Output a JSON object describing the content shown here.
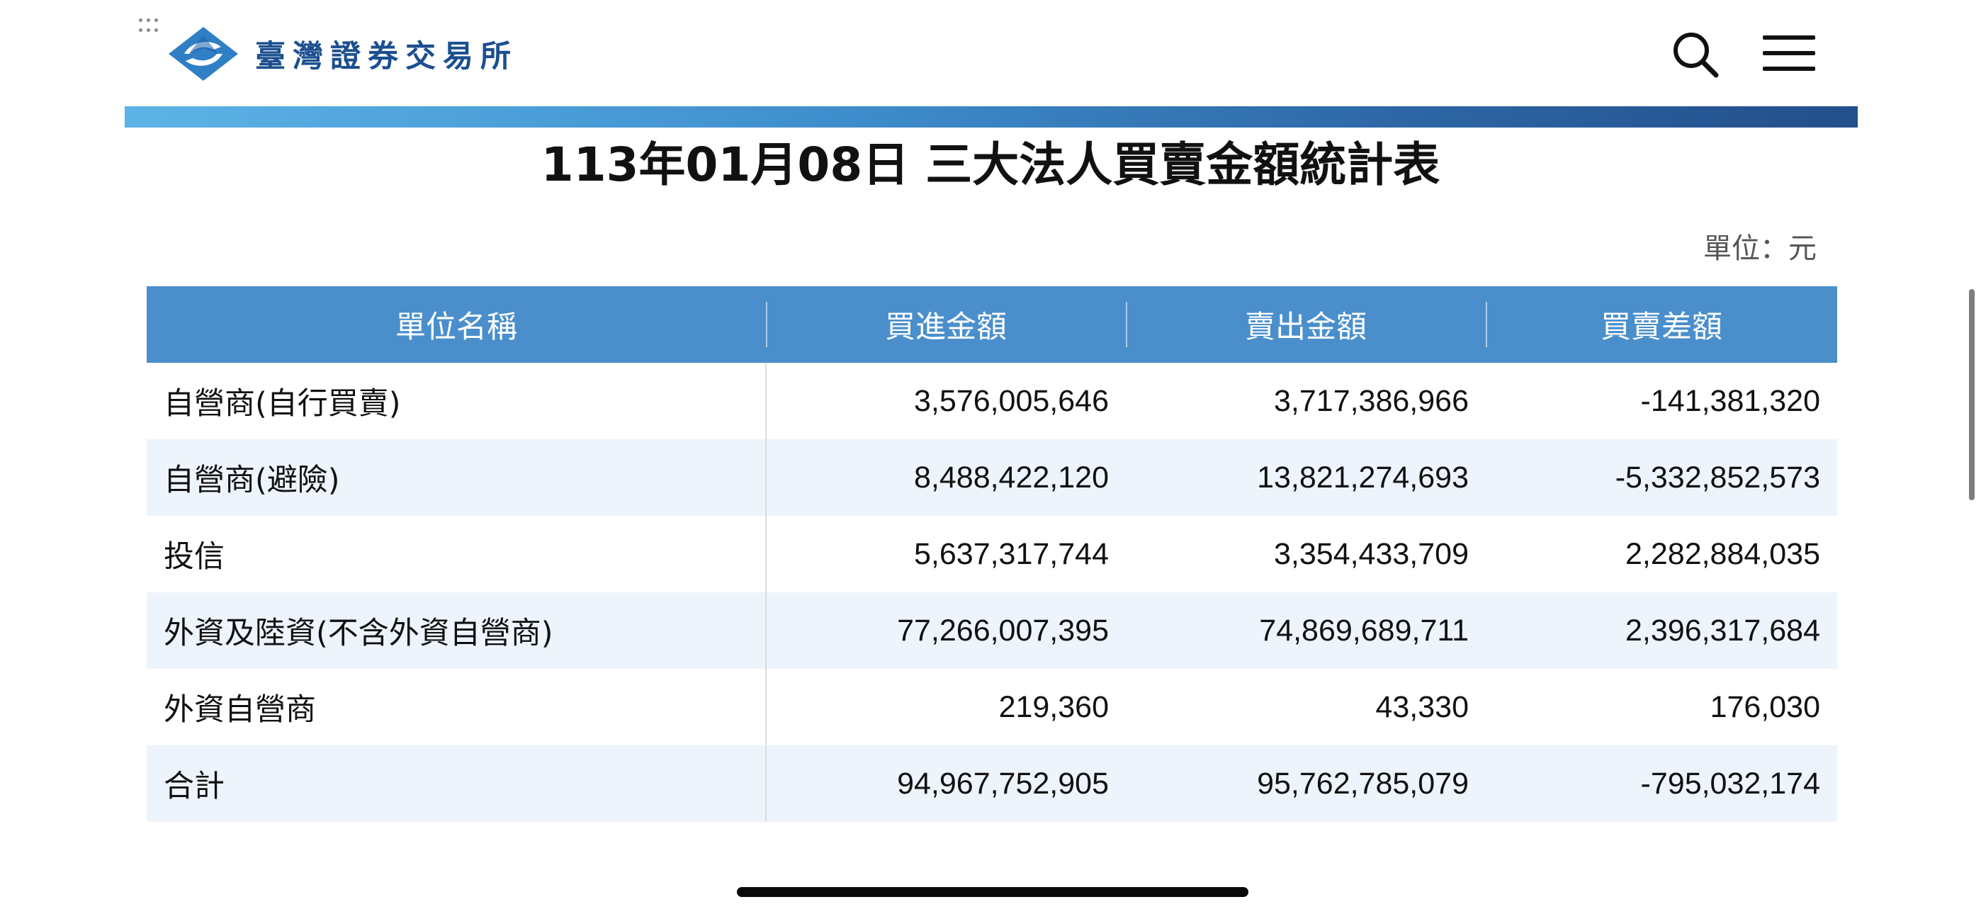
{
  "header": {
    "logo_text": "臺灣證券交易所",
    "colors": {
      "brand": "#1b4f8f",
      "band_start": "#5db3e6",
      "band_end": "#234f8b"
    },
    "icons": {
      "search": "search-icon",
      "menu": "hamburger-menu-icon"
    }
  },
  "page": {
    "title": "113年01月08日 三大法人買賣金額統計表",
    "unit_label": "單位：元"
  },
  "table": {
    "header_color": "#4a8fcc",
    "stripe_color": "#eef4fc",
    "columns": [
      "單位名稱",
      "買進金額",
      "賣出金額",
      "買賣差額"
    ],
    "rows": [
      {
        "name": "自營商(自行買賣)",
        "buy": "3,576,005,646",
        "sell": "3,717,386,966",
        "diff": "-141,381,320"
      },
      {
        "name": "自營商(避險)",
        "buy": "8,488,422,120",
        "sell": "13,821,274,693",
        "diff": "-5,332,852,573"
      },
      {
        "name": "投信",
        "buy": "5,637,317,744",
        "sell": "3,354,433,709",
        "diff": "2,282,884,035"
      },
      {
        "name": "外資及陸資(不含外資自營商)",
        "buy": "77,266,007,395",
        "sell": "74,869,689,711",
        "diff": "2,396,317,684"
      },
      {
        "name": "外資自營商",
        "buy": "219,360",
        "sell": "43,330",
        "diff": "176,030"
      },
      {
        "name": "合計",
        "buy": "94,967,752,905",
        "sell": "95,762,785,079",
        "diff": "-795,032,174"
      }
    ]
  }
}
